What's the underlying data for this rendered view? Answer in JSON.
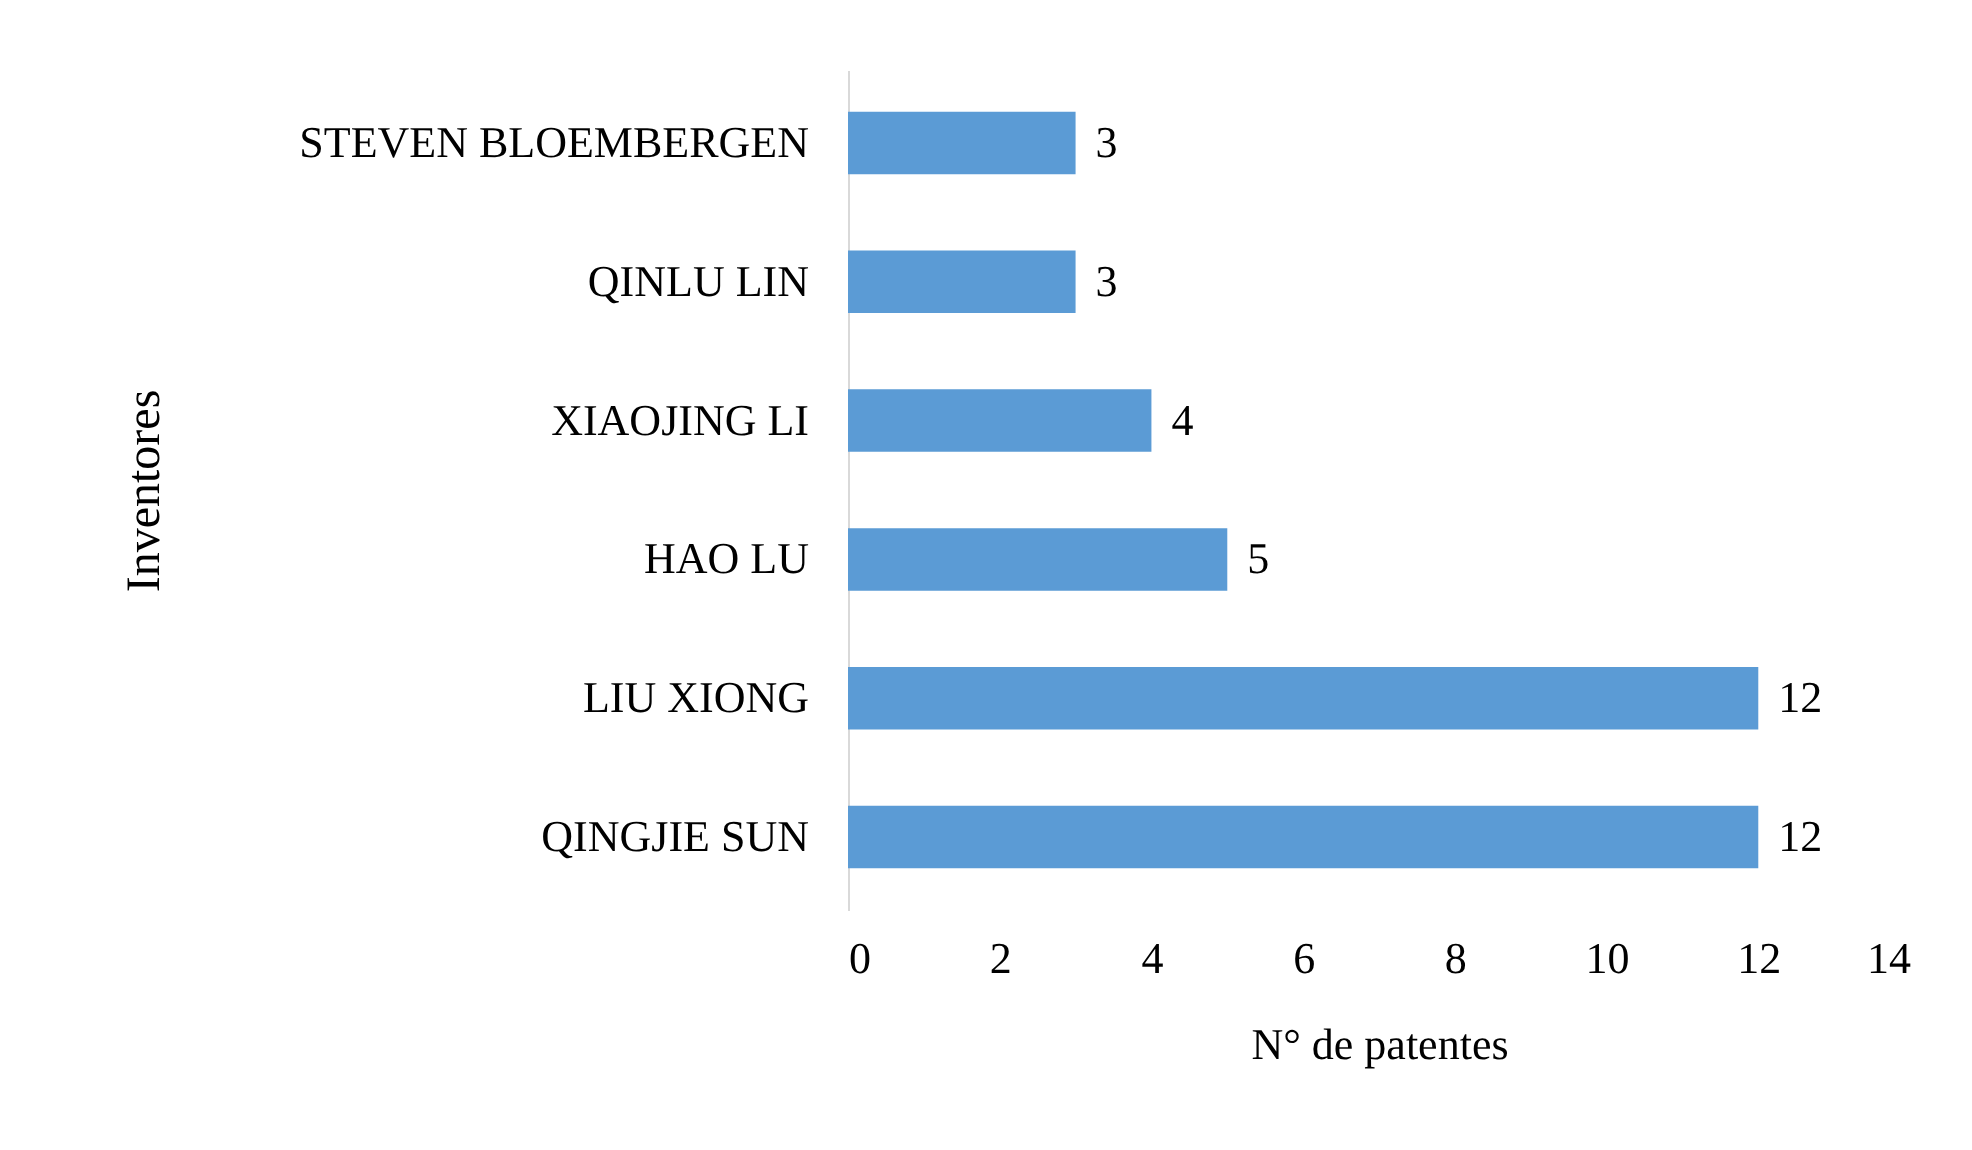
{
  "chart_data": {
    "type": "bar",
    "orientation": "horizontal",
    "xlabel": "N° de patentes",
    "ylabel": "Inventores",
    "categories": [
      "STEVEN BLOEMBERGEN",
      "QINLU LIN",
      "XIAOJING LI",
      "HAO LU",
      "LIU XIONG",
      "QINGJIE SUN"
    ],
    "values": [
      3,
      3,
      4,
      5,
      12,
      12
    ],
    "color": "#5b9bd5",
    "xlim": [
      0,
      14
    ],
    "xticks": [
      0,
      2,
      4,
      6,
      8,
      10,
      12,
      14
    ],
    "data_labels": true,
    "grid": false
  }
}
